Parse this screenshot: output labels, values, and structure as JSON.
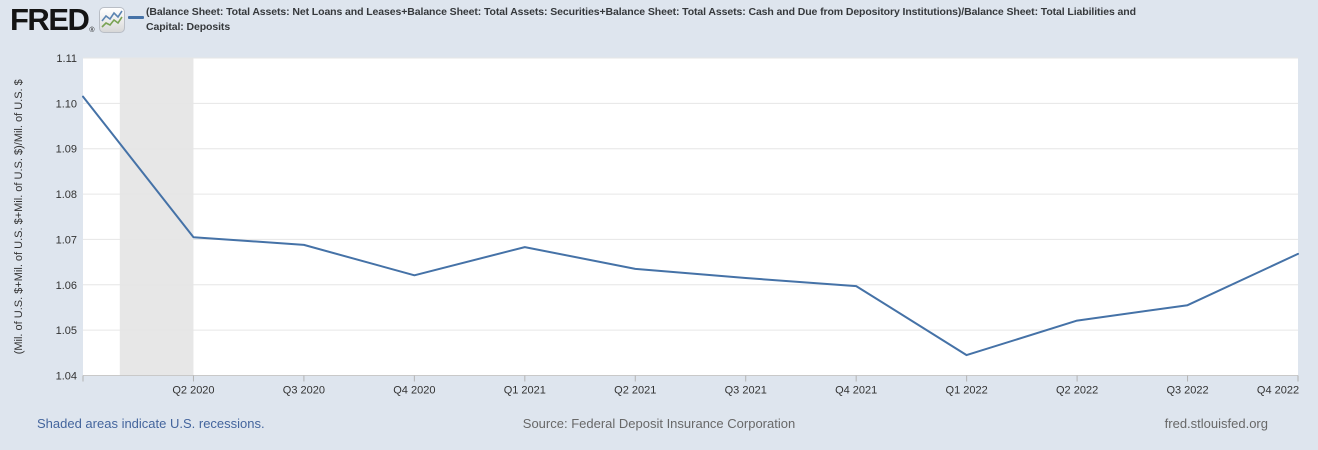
{
  "brand": {
    "logo_text": "FRED",
    "registered_mark": "®",
    "logo_icon": "line-chart-icon"
  },
  "chart_data": {
    "type": "line",
    "x": [
      "Q1 2020",
      "Q2 2020",
      "Q3 2020",
      "Q4 2020",
      "Q1 2021",
      "Q2 2021",
      "Q3 2021",
      "Q4 2021",
      "Q1 2022",
      "Q2 2022",
      "Q3 2022",
      "Q4 2022"
    ],
    "values": [
      1.1015,
      1.0705,
      1.0688,
      1.0621,
      1.0683,
      1.0635,
      1.0615,
      1.0597,
      1.0445,
      1.0521,
      1.0555,
      1.0668
    ],
    "x_tick_labels": [
      "Q2 2020",
      "Q3 2020",
      "Q4 2020",
      "Q1 2021",
      "Q2 2021",
      "Q3 2021",
      "Q4 2021",
      "Q1 2022",
      "Q2 2022",
      "Q3 2022",
      "Q4 2022"
    ],
    "y_ticks": [
      "1.04",
      "1.05",
      "1.06",
      "1.07",
      "1.08",
      "1.09",
      "1.10",
      "1.11"
    ],
    "ylim": [
      1.04,
      1.11
    ],
    "ylabel": "(Mil. of U.S. $+Mil. of U.S. $+Mil. of U.S. $)/Mil. of U.S. $",
    "xlabel": "",
    "title": "",
    "grid": "horizontal",
    "legend_position": "top-left",
    "legend": {
      "marker_color": "#4572a7",
      "lines": [
        "(Balance Sheet: Total Assets: Net Loans and Leases+Balance Sheet: Total Assets: Securities+Balance Sheet: Total Assets: Cash and Due from Depository Institutions)/Balance Sheet: Total Liabilities and",
        "Capital: Deposits"
      ]
    },
    "line_color": "#4572a7",
    "recession_band": {
      "start_x_index": 0.3333,
      "end_x_index": 1,
      "color": "#e7e7e7"
    }
  },
  "footer": {
    "recessions_note": "Shaded areas indicate U.S. recessions.",
    "source": "Source: Federal Deposit Insurance Corporation",
    "site": "fred.stlouisfed.org"
  },
  "colors": {
    "page_bg": "#dee5ee",
    "plot_bg": "#ffffff",
    "gridline": "#e6e6e6",
    "axis_line": "#c9c9c9",
    "tick_mark": "#b3b3b3",
    "tick_text": "#333333",
    "link_blue": "#44659d",
    "footer_gray": "#686868"
  }
}
